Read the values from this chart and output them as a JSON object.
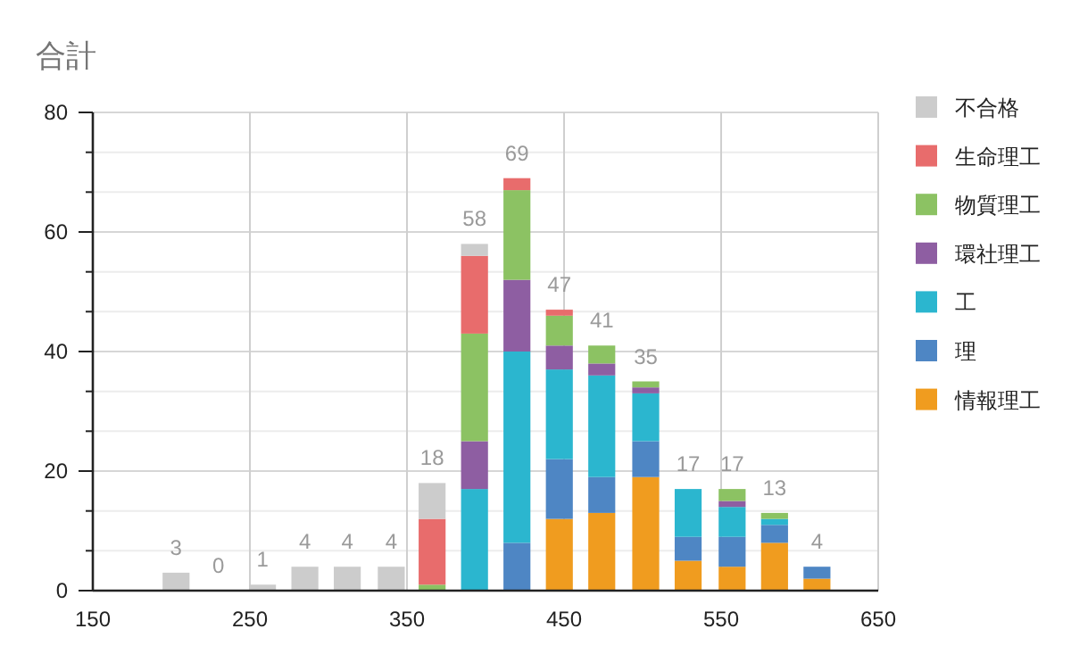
{
  "chart_data": {
    "type": "bar",
    "title": "合計",
    "stacked": true,
    "grid": true,
    "legend": "right",
    "x": [
      203,
      230,
      258,
      285,
      312,
      340,
      366,
      393,
      420,
      447,
      474,
      502,
      529,
      557,
      584,
      611
    ],
    "xlim": [
      150,
      650
    ],
    "xticks": [
      150,
      250,
      350,
      450,
      550,
      650
    ],
    "ylim": [
      0,
      80
    ],
    "yticks": [
      0,
      {
        "value": 6.67,
        "label": null
      },
      {
        "value": 13.33,
        "label": null
      },
      20,
      {
        "value": 26.67,
        "label": null
      },
      {
        "value": 33.33,
        "label": null
      },
      40,
      {
        "value": 46.67,
        "label": null
      },
      {
        "value": 53.33,
        "label": null
      },
      60,
      {
        "value": 66.67,
        "label": null
      },
      {
        "value": 73.33,
        "label": null
      },
      80
    ],
    "series": [
      {
        "name": "情報理工",
        "color": "#f09c1f",
        "values": [
          0,
          0,
          0,
          0,
          0,
          0,
          0,
          0,
          0,
          12,
          13,
          19,
          5,
          4,
          8,
          2
        ]
      },
      {
        "name": "理",
        "color": "#4e86c4",
        "values": [
          0,
          0,
          0,
          0,
          0,
          0,
          0,
          0,
          8,
          10,
          6,
          6,
          4,
          5,
          3,
          2
        ]
      },
      {
        "name": "工",
        "color": "#2bb6cf",
        "values": [
          0,
          0,
          0,
          0,
          0,
          0,
          0,
          17,
          32,
          15,
          17,
          8,
          8,
          5,
          1,
          0
        ]
      },
      {
        "name": "環社理工",
        "color": "#8e5ea2",
        "values": [
          0,
          0,
          0,
          0,
          0,
          0,
          0,
          8,
          12,
          4,
          2,
          1,
          0,
          1,
          0,
          0
        ]
      },
      {
        "name": "物質理工",
        "color": "#8cc263",
        "values": [
          0,
          0,
          0,
          0,
          0,
          0,
          1,
          18,
          15,
          5,
          3,
          1,
          0,
          2,
          1,
          0
        ]
      },
      {
        "name": "生命理工",
        "color": "#e86c6c",
        "values": [
          0,
          0,
          0,
          0,
          0,
          0,
          11,
          13,
          2,
          1,
          0,
          0,
          0,
          0,
          0,
          0
        ]
      },
      {
        "name": "不合格",
        "color": "#cccccc",
        "values": [
          3,
          0,
          1,
          4,
          4,
          4,
          6,
          2,
          0,
          0,
          0,
          0,
          0,
          0,
          0,
          0
        ]
      }
    ],
    "totals": [
      "3",
      "0",
      "1",
      "4",
      "4",
      "4",
      "18",
      "58",
      "69",
      "47",
      "41",
      "35",
      "17",
      "17",
      "13",
      "4"
    ]
  }
}
